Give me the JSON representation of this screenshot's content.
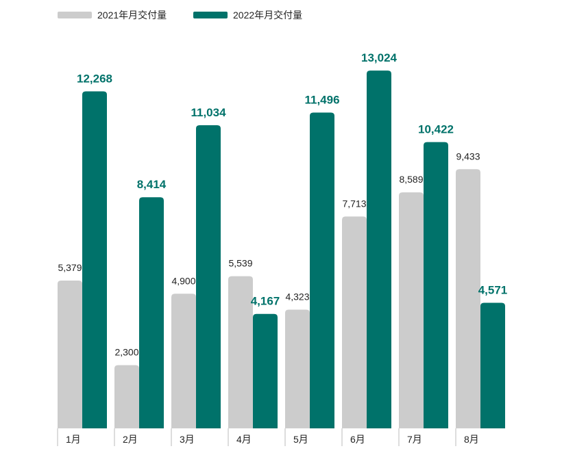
{
  "colors": {
    "series_2021": "#cccccc",
    "series_2022": "#00726a",
    "axis": "#bbbbbb"
  },
  "chart_data": {
    "type": "bar",
    "title": "",
    "xlabel": "",
    "ylabel": "",
    "categories": [
      "1月",
      "2月",
      "3月",
      "4月",
      "5月",
      "6月",
      "7月",
      "8月"
    ],
    "series": [
      {
        "name": "2021年月交付量",
        "values": [
          5379,
          2300,
          4900,
          5539,
          4323,
          7713,
          8589,
          9433
        ],
        "labels": [
          "5,379",
          "2,300",
          "4,900",
          "5,539",
          "4,323",
          "7,713",
          "8,589",
          "9,433"
        ]
      },
      {
        "name": "2022年月交付量",
        "values": [
          12268,
          8414,
          11034,
          4167,
          11496,
          13024,
          10422,
          4571
        ],
        "labels": [
          "12,268",
          "8,414",
          "11,034",
          "4,167",
          "11,496",
          "13,024",
          "10,422",
          "4,571"
        ]
      }
    ],
    "ylim": [
      0,
      13700
    ],
    "grid": false,
    "legend": "top-left"
  }
}
